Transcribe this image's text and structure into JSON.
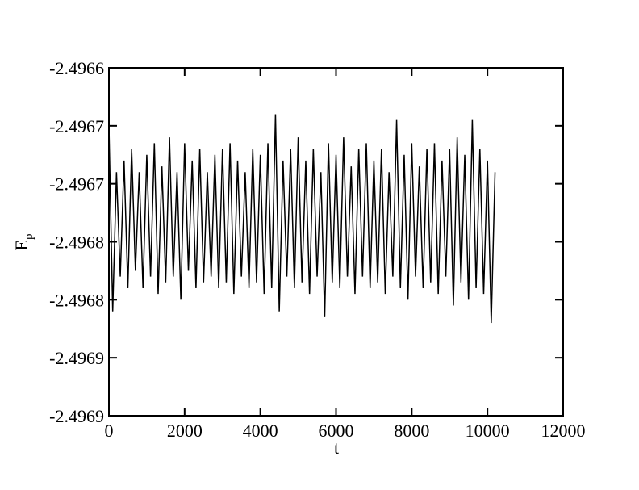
{
  "chart_data": {
    "type": "line",
    "xlabel": "t",
    "ylabel": {
      "text": "E",
      "subscript": "p"
    },
    "xlim": [
      0,
      12000
    ],
    "xticks": [
      0,
      2000,
      4000,
      6000,
      8000,
      10000,
      12000
    ],
    "ylim": [
      -2.4969,
      -2.4966
    ],
    "yticks": [
      {
        "value": -2.4969,
        "label": "-2.4969"
      },
      {
        "value": -2.49685,
        "label": "-2.4969"
      },
      {
        "value": -2.4968,
        "label": "-2.4968"
      },
      {
        "value": -2.49675,
        "label": "-2.4968"
      },
      {
        "value": -2.4967,
        "label": "-2.4967"
      },
      {
        "value": -2.49665,
        "label": "-2.4967"
      },
      {
        "value": -2.4966,
        "label": "-2.4966"
      }
    ],
    "x": [
      0,
      100,
      200,
      300,
      400,
      500,
      600,
      700,
      800,
      900,
      1000,
      1100,
      1200,
      1300,
      1400,
      1500,
      1600,
      1700,
      1800,
      1900,
      2000,
      2100,
      2200,
      2300,
      2400,
      2500,
      2600,
      2700,
      2800,
      2900,
      3000,
      3100,
      3200,
      3300,
      3400,
      3500,
      3600,
      3700,
      3800,
      3900,
      4000,
      4100,
      4200,
      4300,
      4400,
      4500,
      4600,
      4700,
      4800,
      4900,
      5000,
      5100,
      5200,
      5300,
      5400,
      5500,
      5600,
      5700,
      5800,
      5900,
      6000,
      6100,
      6200,
      6300,
      6400,
      6500,
      6600,
      6700,
      6800,
      6900,
      7000,
      7100,
      7200,
      7300,
      7400,
      7500,
      7600,
      7700,
      7800,
      7900,
      8000,
      8100,
      8200,
      8300,
      8400,
      8500,
      8600,
      8700,
      8800,
      8900,
      9000,
      9100,
      9200,
      9300,
      9400,
      9500,
      9600,
      9700,
      9800,
      9900,
      10000,
      10100,
      10200
    ],
    "series": [
      {
        "color": "#000000",
        "values": [
          -2.49665,
          -2.49681,
          -2.49669,
          -2.49678,
          -2.49668,
          -2.49679,
          -2.49667,
          -2.496775,
          -2.49669,
          -2.49679,
          -2.496675,
          -2.49678,
          -2.496665,
          -2.496795,
          -2.496685,
          -2.496785,
          -2.49666,
          -2.49678,
          -2.49669,
          -2.4968,
          -2.496665,
          -2.496775,
          -2.49668,
          -2.49679,
          -2.49667,
          -2.496785,
          -2.49669,
          -2.49678,
          -2.496675,
          -2.49679,
          -2.49667,
          -2.496785,
          -2.496665,
          -2.496795,
          -2.49668,
          -2.49678,
          -2.49669,
          -2.49679,
          -2.49667,
          -2.496785,
          -2.496675,
          -2.496795,
          -2.496665,
          -2.49679,
          -2.49664,
          -2.49681,
          -2.49668,
          -2.49678,
          -2.49667,
          -2.49679,
          -2.49666,
          -2.496785,
          -2.49668,
          -2.496795,
          -2.49667,
          -2.49678,
          -2.49669,
          -2.496815,
          -2.496665,
          -2.496785,
          -2.496675,
          -2.49679,
          -2.49666,
          -2.49678,
          -2.496685,
          -2.496795,
          -2.49667,
          -2.49678,
          -2.496665,
          -2.49679,
          -2.49668,
          -2.496785,
          -2.49667,
          -2.496795,
          -2.49669,
          -2.49678,
          -2.496645,
          -2.49679,
          -2.496675,
          -2.4968,
          -2.496665,
          -2.49678,
          -2.496685,
          -2.49679,
          -2.49667,
          -2.496785,
          -2.496665,
          -2.496795,
          -2.49668,
          -2.49678,
          -2.49667,
          -2.496805,
          -2.49666,
          -2.496785,
          -2.496675,
          -2.4968,
          -2.496645,
          -2.49679,
          -2.49667,
          -2.496795,
          -2.49668,
          -2.49682,
          -2.49669
        ]
      }
    ]
  }
}
